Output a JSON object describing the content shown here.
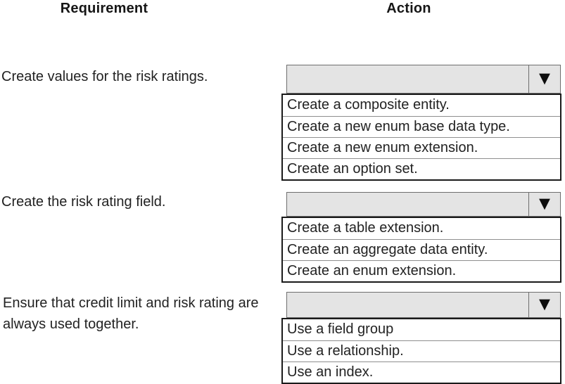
{
  "headers": {
    "requirement": "Requirement",
    "action": "Action"
  },
  "icons": {
    "dropdown_arrow": "▼"
  },
  "colors": {
    "background": "#ffffff",
    "text": "#222222",
    "select_fill": "#e4e4e4",
    "select_border": "#6e6e6e",
    "list_border": "#1a1a1a",
    "row_separator": "#8f8f8f",
    "arrow": "#0d0d0d"
  },
  "rows": [
    {
      "requirement": "Create values for the risk ratings.",
      "dropdown": {
        "selected_value": "",
        "options": [
          "Create a composite entity.",
          "Create a new enum base data type.",
          "Create a new enum extension.",
          "Create an option set."
        ]
      }
    },
    {
      "requirement": "Create the risk rating field.",
      "dropdown": {
        "selected_value": "",
        "options": [
          "Create a table extension.",
          "Create an aggregate data entity.",
          "Create an enum extension."
        ]
      }
    },
    {
      "requirement": "Ensure that credit limit and risk rating are always used together.",
      "dropdown": {
        "selected_value": "",
        "options": [
          "Use a field group",
          "Use a relationship.",
          "Use an index."
        ]
      }
    }
  ]
}
